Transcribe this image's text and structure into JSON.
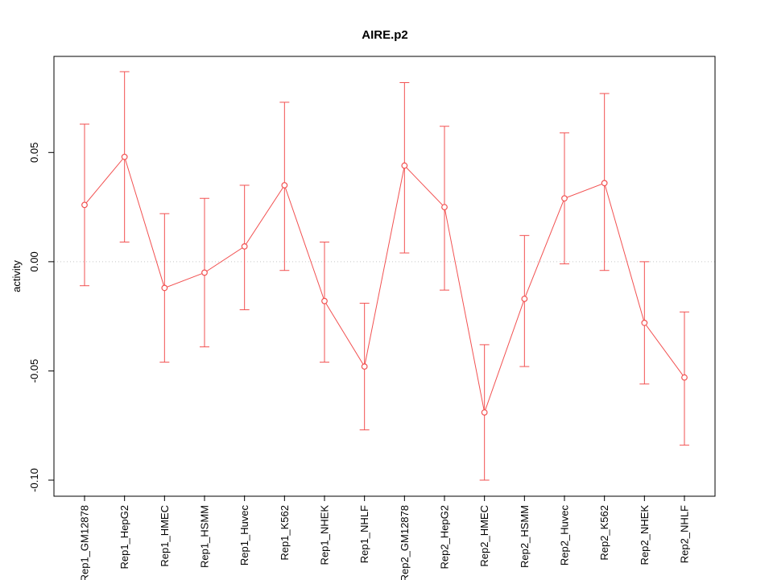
{
  "chart_data": {
    "type": "line",
    "title": "AIRE.p2",
    "xlabel": "",
    "ylabel": "activity",
    "categories": [
      "Rep1_GM12878",
      "Rep1_HepG2",
      "Rep1_HMEC",
      "Rep1_HSMM",
      "Rep1_Huvec",
      "Rep1_K562",
      "Rep1_NHEK",
      "Rep1_NHLF",
      "Rep2_GM12878",
      "Rep2_HepG2",
      "Rep2_HMEC",
      "Rep2_HSMM",
      "Rep2_Huvec",
      "Rep2_K562",
      "Rep2_NHEK",
      "Rep2_NHLF"
    ],
    "values": [
      0.026,
      0.048,
      -0.012,
      -0.005,
      0.007,
      0.035,
      -0.018,
      -0.048,
      0.044,
      0.025,
      -0.069,
      -0.017,
      0.029,
      0.036,
      -0.028,
      -0.053
    ],
    "error_low": [
      -0.011,
      0.009,
      -0.046,
      -0.039,
      -0.022,
      -0.004,
      -0.046,
      -0.077,
      0.004,
      -0.013,
      -0.1,
      -0.048,
      -0.001,
      -0.004,
      -0.056,
      -0.084
    ],
    "error_high": [
      0.063,
      0.087,
      0.022,
      0.029,
      0.035,
      0.073,
      0.009,
      -0.019,
      0.082,
      0.062,
      -0.038,
      0.012,
      0.059,
      0.077,
      0.0,
      -0.023
    ],
    "yticks": [
      0.05,
      0.0,
      -0.05,
      -0.1
    ],
    "ylim": [
      -0.107,
      0.094
    ],
    "reference_line": {
      "y": 0,
      "style": "dotted",
      "color": "#c8c8c8"
    },
    "series_color": "#f25151",
    "grid": false,
    "legend": false,
    "marker": "open-circle"
  }
}
